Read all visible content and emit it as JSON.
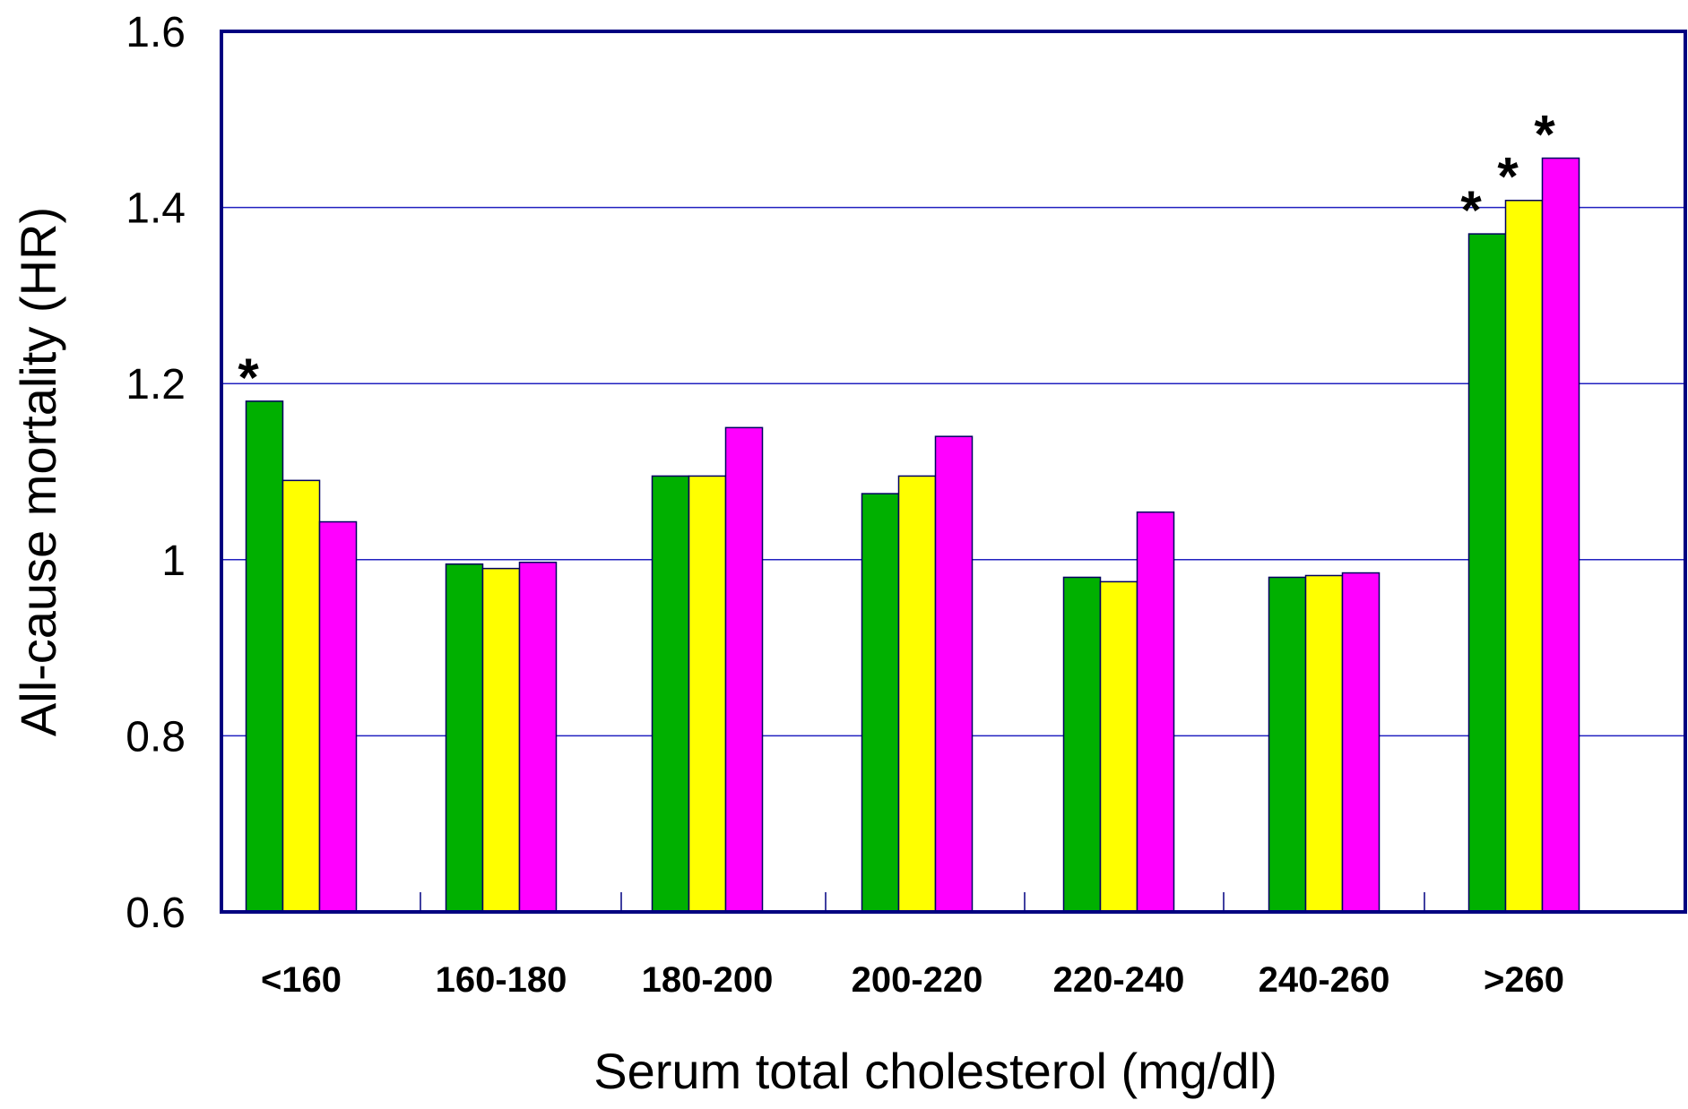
{
  "chart_data": {
    "type": "bar",
    "title": "",
    "xlabel": "Serum total cholesterol (mg/dl)",
    "ylabel": "All-cause mortality (HR)",
    "ylim": [
      0.6,
      1.6
    ],
    "yticks": [
      0.6,
      0.8,
      1,
      1.2,
      1.4,
      1.6
    ],
    "ytick_labels": [
      "0.6",
      "0.8",
      "1",
      "1.2",
      "1.4",
      "1.6"
    ],
    "grid": true,
    "legend": "none",
    "categories": [
      "<160",
      "160-180",
      "180-200",
      "200-220",
      "220-240",
      "240-260",
      ">260"
    ],
    "series": [
      {
        "color": "#00b000",
        "values": [
          1.18,
          0.995,
          1.095,
          1.075,
          0.98,
          0.98,
          1.37
        ]
      },
      {
        "color": "#ffff00",
        "values": [
          1.09,
          0.99,
          1.095,
          1.095,
          0.975,
          0.982,
          1.408
        ]
      },
      {
        "color": "#ff00ff",
        "values": [
          1.043,
          0.997,
          1.15,
          1.14,
          1.054,
          0.985,
          1.456
        ]
      }
    ],
    "annotations": [
      {
        "category": "<160",
        "series": 0,
        "text": "*"
      },
      {
        "category": ">260",
        "series": 0,
        "text": "*"
      },
      {
        "category": ">260",
        "series": 1,
        "text": "*"
      },
      {
        "category": ">260",
        "series": 2,
        "text": "*"
      }
    ]
  },
  "colors": {
    "frame": "#000080",
    "grid": "#2020c0",
    "bar_outline": "#000060"
  }
}
